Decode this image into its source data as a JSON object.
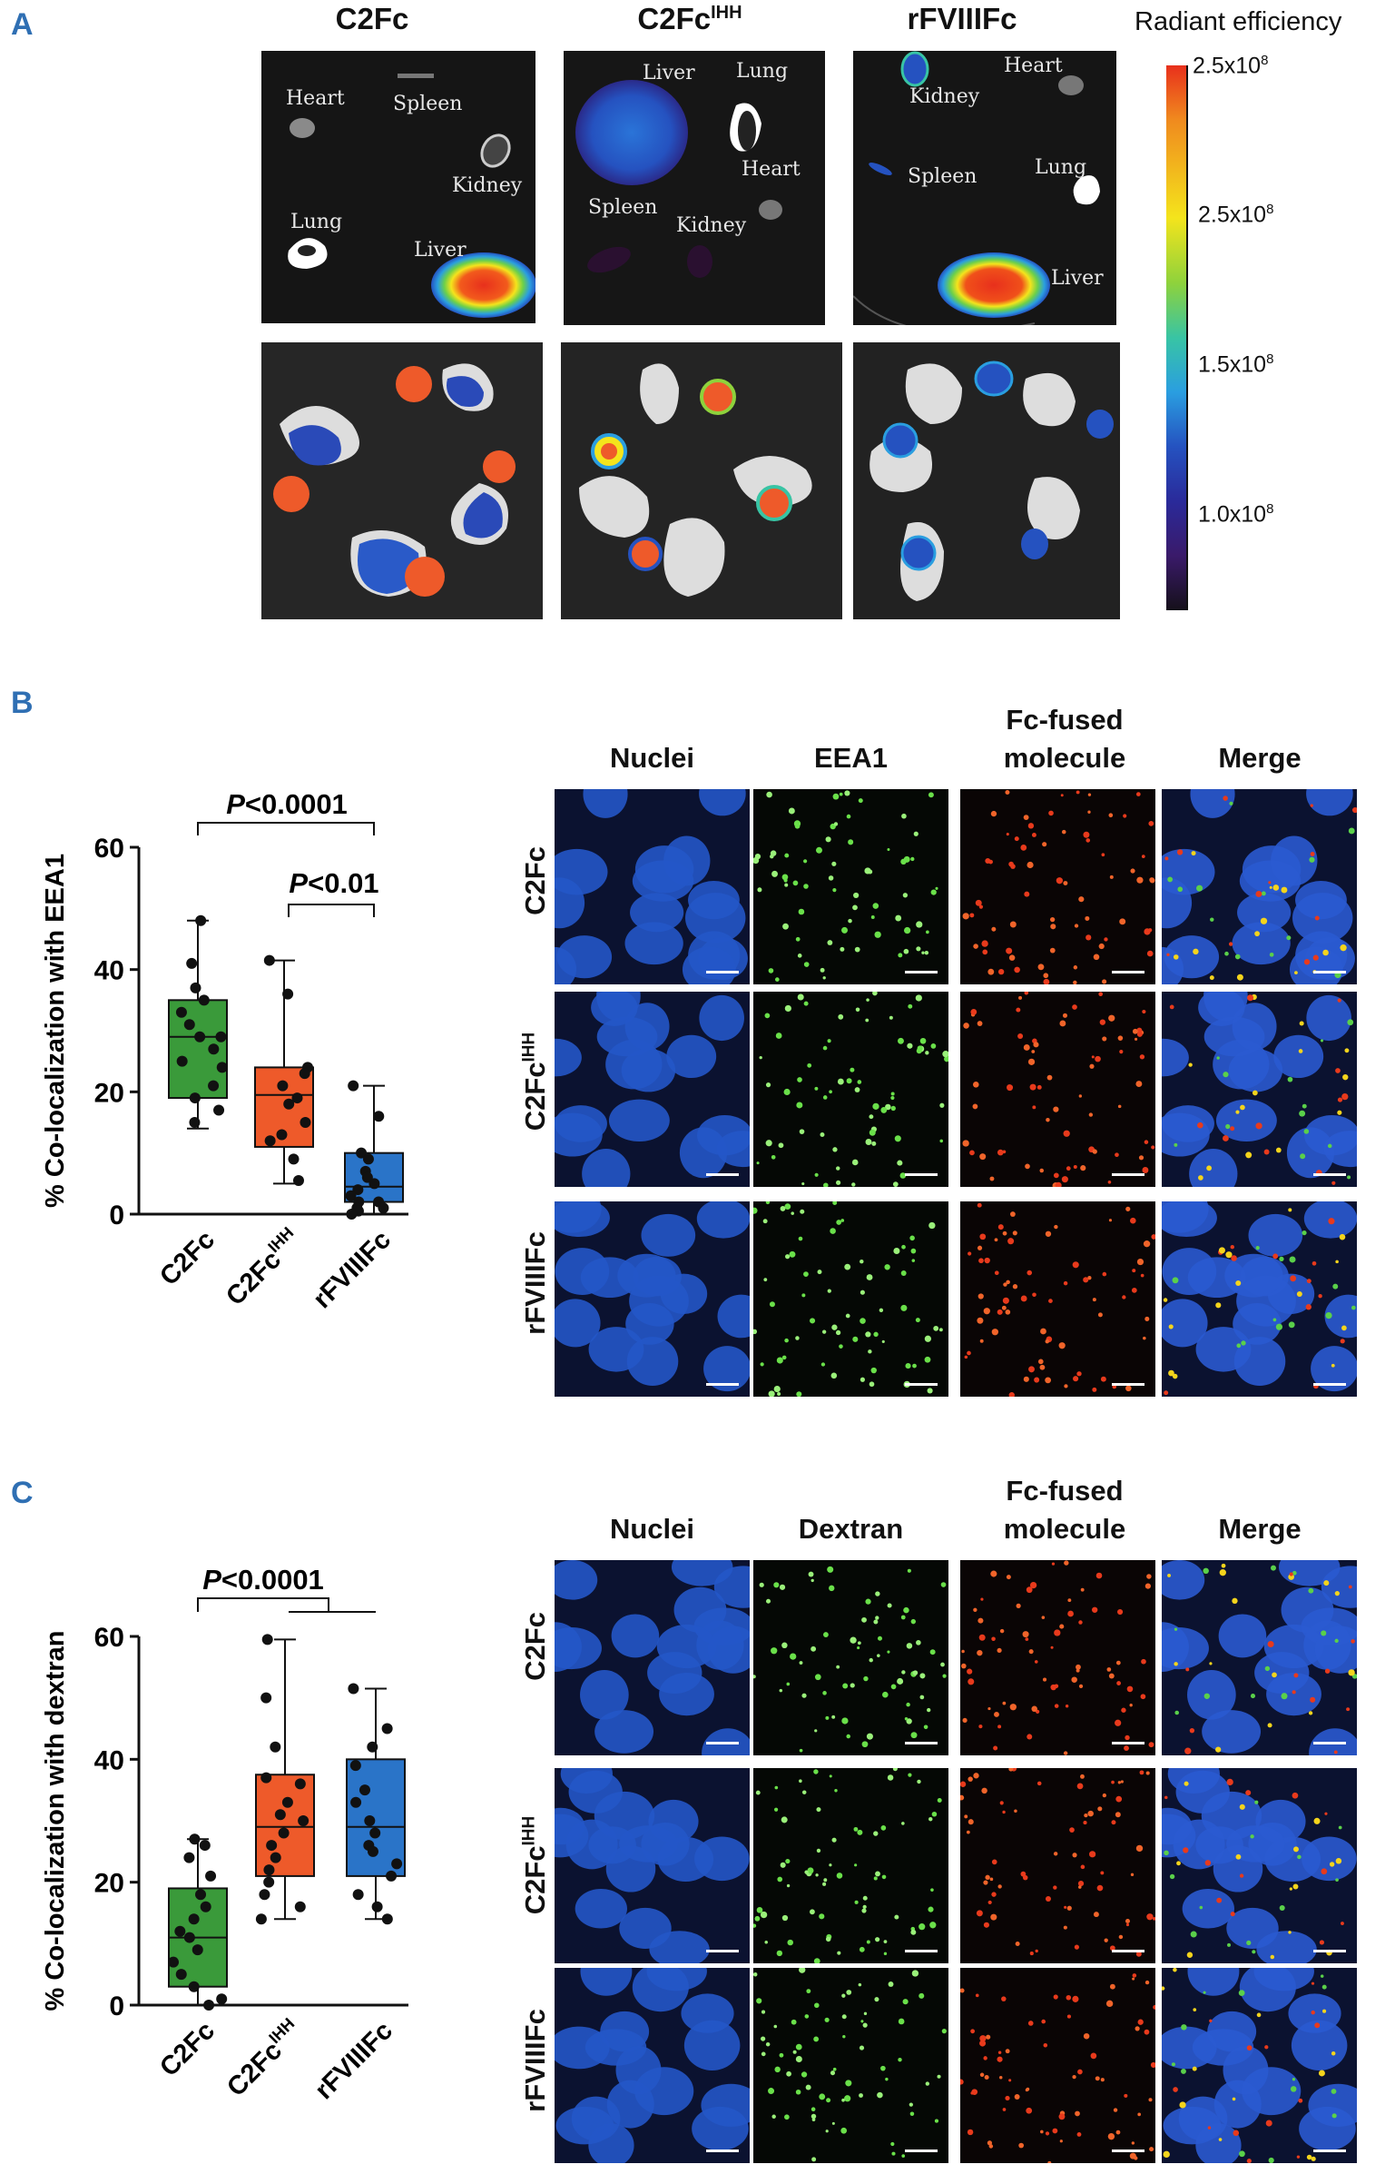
{
  "panelA": {
    "label": "A",
    "columns": [
      {
        "name": "C2Fc",
        "sup": ""
      },
      {
        "name": "C2Fc",
        "sup": "IHH"
      },
      {
        "name": "rFVIIIFc",
        "sup": ""
      }
    ],
    "organs": {
      "col1": [
        "Heart",
        "Spleen",
        "Kidney",
        "Lung",
        "Liver"
      ],
      "col2": [
        "Liver",
        "Lung",
        "Heart",
        "Spleen",
        "Kidney"
      ],
      "col3": [
        "Heart",
        "Kidney",
        "Spleen",
        "Lung",
        "Liver"
      ]
    },
    "colorbar": {
      "title": "Radiant efficiency",
      "ticks": [
        {
          "base": "2.5x10",
          "exp": "8"
        },
        {
          "base": "2.5x10",
          "exp": "8"
        },
        {
          "base": "1.5x10",
          "exp": "8"
        },
        {
          "base": "1.0x10",
          "exp": "8"
        }
      ],
      "colors": [
        "#e8301c",
        "#f08a1e",
        "#f4e41c",
        "#8ed23c",
        "#38c4a4",
        "#2a9ee0",
        "#2552c0",
        "#2a2a9a",
        "#3a1a6a",
        "#15101a"
      ]
    }
  },
  "panelB": {
    "label": "B",
    "headers": [
      "Nuclei",
      "EEA1",
      "Fc-fused\nmolecule",
      "Merge"
    ],
    "rows": [
      {
        "name": "C2Fc",
        "sup": ""
      },
      {
        "name": "C2Fc",
        "sup": "IHH"
      },
      {
        "name": "rFVIIIFc",
        "sup": ""
      }
    ],
    "sig1": "P<0.0001",
    "sig2": "P<0.01",
    "chart": {
      "ylabel": "% Co-localization with EEA1",
      "yticks": [
        "0",
        "20",
        "40",
        "60"
      ]
    }
  },
  "panelC": {
    "label": "C",
    "headers": [
      "Nuclei",
      "Dextran",
      "Fc-fused\nmolecule",
      "Merge"
    ],
    "rows": [
      {
        "name": "C2Fc",
        "sup": ""
      },
      {
        "name": "C2Fc",
        "sup": "IHH"
      },
      {
        "name": "rFVIIIFc",
        "sup": ""
      }
    ],
    "sig1": "P<0.0001",
    "chart": {
      "ylabel": "% Co-localization with dextran",
      "yticks": [
        "0",
        "20",
        "40",
        "60"
      ]
    }
  },
  "chart_data": [
    {
      "type": "box",
      "panel": "B",
      "ylabel": "% Co-localization with EEA1",
      "ylim": [
        0,
        60
      ],
      "yticks": [
        0,
        20,
        40,
        60
      ],
      "categories": [
        "C2Fc",
        "C2FcIHH",
        "rFVIIIFc"
      ],
      "colors": [
        "#3a9a3a",
        "#ee5a2a",
        "#2a74c8"
      ],
      "boxes": [
        {
          "min": 14,
          "q1": 19,
          "median": 29,
          "q3": 35,
          "max": 48
        },
        {
          "min": 5,
          "q1": 11,
          "median": 19.5,
          "q3": 24,
          "max": 41.5
        },
        {
          "min": 0,
          "q1": 2,
          "median": 4.5,
          "q3": 10,
          "max": 21
        }
      ],
      "points": [
        [
          48,
          41,
          37,
          35,
          33,
          31,
          29,
          29,
          27,
          25,
          24,
          21,
          19,
          17,
          15
        ],
        [
          41.5,
          36,
          24,
          23,
          21,
          19,
          18,
          15,
          13,
          12,
          9,
          5.5
        ],
        [
          21,
          16,
          10,
          9,
          7,
          6,
          5,
          4,
          3,
          2,
          2,
          1,
          1,
          0.5,
          0
        ]
      ],
      "annotations": [
        "P<0.0001",
        "P<0.01"
      ]
    },
    {
      "type": "box",
      "panel": "C",
      "ylabel": "% Co-localization with dextran",
      "ylim": [
        0,
        60
      ],
      "yticks": [
        0,
        20,
        40,
        60
      ],
      "categories": [
        "C2Fc",
        "C2FcIHH",
        "rFVIIIFc"
      ],
      "colors": [
        "#3a9a3a",
        "#ee5a2a",
        "#2a74c8"
      ],
      "boxes": [
        {
          "min": 0,
          "q1": 3,
          "median": 11,
          "q3": 19,
          "max": 27
        },
        {
          "min": 14,
          "q1": 21,
          "median": 29,
          "q3": 37.5,
          "max": 59.5
        },
        {
          "min": 14,
          "q1": 21,
          "median": 29,
          "q3": 40,
          "max": 51.5
        }
      ],
      "points": [
        [
          27,
          26,
          24,
          21,
          18,
          16,
          14,
          12,
          11,
          9,
          7,
          5,
          3,
          1,
          0
        ],
        [
          59.5,
          50,
          42,
          37,
          36,
          33,
          31,
          30,
          28,
          26,
          24,
          22,
          20,
          18,
          16,
          14
        ],
        [
          51.5,
          45,
          42,
          39,
          35,
          33,
          30,
          28,
          26,
          25,
          23,
          21,
          18,
          16,
          14
        ]
      ],
      "annotations": [
        "P<0.0001"
      ]
    }
  ]
}
